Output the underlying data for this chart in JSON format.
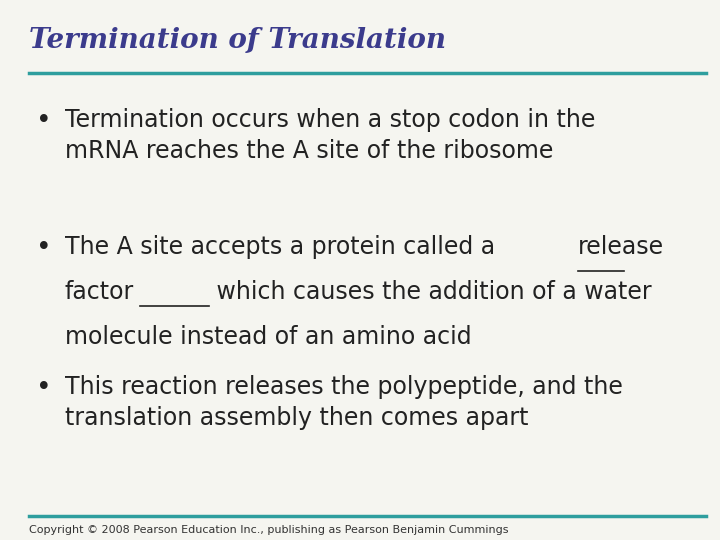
{
  "title": "Termination of Translation",
  "title_color": "#3B3B8C",
  "title_fontsize": 20,
  "title_style": "italic",
  "title_weight": "bold",
  "title_font": "serif",
  "line_color": "#2E9E9E",
  "background_color": "#F5F5F0",
  "bullet_color": "#222222",
  "bullet_fontsize": 17,
  "bullet_font": "sans-serif",
  "bullets": [
    {
      "text": "Termination occurs when a stop codon in the\nmRNA reaches the A site of the ribosome",
      "underline": []
    },
    {
      "text": "The A site accepts a protein called a release\nfactor which causes the addition of a water\nmolecule instead of an amino acid",
      "underline": [
        "release",
        "factor"
      ]
    },
    {
      "text": "This reaction releases the polypeptide, and the\ntranslation assembly then comes apart",
      "underline": []
    }
  ],
  "copyright": "Copyright © 2008 Pearson Education Inc., publishing as Pearson Benjamin Cummings",
  "copyright_fontsize": 8,
  "copyright_color": "#333333"
}
